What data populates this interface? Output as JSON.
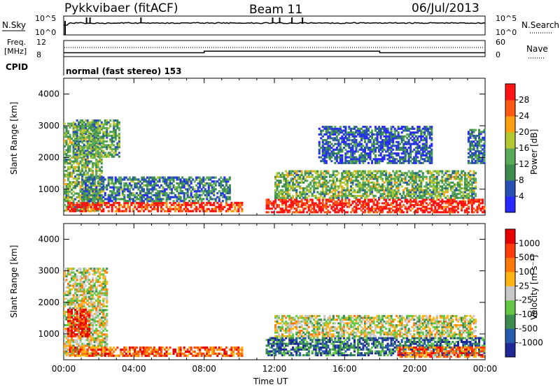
{
  "header": {
    "station": "Pykkvibaer (fitACF)",
    "beam": "Beam 11",
    "date": "06/Jul/2013"
  },
  "status_panels": {
    "nsky_label": "N.Sky",
    "nsky_ticks": [
      "10^5",
      "10^0"
    ],
    "nsearch_label": "N.Search",
    "nsearch_ticks": [
      "10^5",
      "10^0"
    ],
    "freq_label": "Freq.",
    "freq_unit": "[MHz]",
    "freq_ticks": [
      "12",
      "8"
    ],
    "nave_label": "Nave",
    "nave_ticks": [
      "60",
      "0"
    ],
    "cpid_label": "CPID",
    "cpid_text": "normal (fast stereo) 153",
    "freq_steps_hours": [
      0,
      8.0,
      18.0,
      24
    ],
    "freq_step_levels_mhz": [
      8.6,
      9.0,
      8.6
    ]
  },
  "chart_data": [
    {
      "type": "heatmap",
      "panel": "power",
      "ylabel": "Slant Range [km]",
      "yticks": [
        "1000",
        "2000",
        "3000",
        "4000"
      ],
      "ylim": [
        180,
        4500
      ],
      "xlim_hours": [
        0,
        24
      ],
      "colorbar_label": "Power [dB]",
      "colorbar_ticks": [
        "4",
        "8",
        "12",
        "16",
        "20",
        "24",
        "28"
      ],
      "colorbar_colors": [
        "#2828ff",
        "#2850b4",
        "#3c8c50",
        "#5aaa5a",
        "#b4c832",
        "#ffa014",
        "#ff5a14",
        "#ff1414"
      ],
      "regions": [
        {
          "t0": 0.0,
          "t1": 2.2,
          "r0": 300,
          "r1": 3100,
          "level": 0.45
        },
        {
          "t0": 0.5,
          "t1": 3.2,
          "r0": 2000,
          "r1": 3200,
          "level": 0.4
        },
        {
          "t0": 0.2,
          "t1": 10.2,
          "r0": 280,
          "r1": 600,
          "level": 0.9
        },
        {
          "t0": 1.0,
          "t1": 9.5,
          "r0": 600,
          "r1": 1400,
          "level": 0.3
        },
        {
          "t0": 11.5,
          "t1": 24.0,
          "r0": 250,
          "r1": 700,
          "level": 0.95
        },
        {
          "t0": 12.0,
          "t1": 23.5,
          "r0": 700,
          "r1": 1600,
          "level": 0.45
        },
        {
          "t0": 14.5,
          "t1": 21.0,
          "r0": 1800,
          "r1": 3000,
          "level": 0.2
        },
        {
          "t0": 23.0,
          "t1": 24.0,
          "r0": 1800,
          "r1": 2900,
          "level": 0.25
        }
      ]
    },
    {
      "type": "heatmap",
      "panel": "velocity",
      "ylabel": "Slant Range [km]",
      "yticks": [
        "1000",
        "2000",
        "3000",
        "4000"
      ],
      "ylim": [
        180,
        4500
      ],
      "xlim_hours": [
        0,
        24
      ],
      "xticks": [
        "00:00",
        "04:00",
        "08:00",
        "12:00",
        "16:00",
        "20:00",
        "00:00"
      ],
      "xlabel": "Time UT",
      "colorbar_label": "Velocity [m s⁻¹]",
      "colorbar_ticks": [
        "1000",
        "500",
        "100",
        "25",
        "-25",
        "-100",
        "-500",
        "-1000"
      ],
      "colorbar_colors": [
        "#1e2896",
        "#285aaa",
        "#3c8c50",
        "#64c846",
        "#c8c8c8",
        "#ffb414",
        "#ff780a",
        "#ff3c0a",
        "#e60000"
      ],
      "regions": [
        {
          "t0": 0.0,
          "t1": 2.5,
          "r0": 300,
          "r1": 3100,
          "level": 0.5
        },
        {
          "t0": 0.3,
          "t1": 10.2,
          "r0": 280,
          "r1": 600,
          "level": 0.8
        },
        {
          "t0": 0.2,
          "t1": 1.5,
          "r0": 900,
          "r1": 1800,
          "level": 0.9
        },
        {
          "t0": 11.5,
          "t1": 24.0,
          "r0": 300,
          "r1": 900,
          "level": 0.2
        },
        {
          "t0": 12.0,
          "t1": 23.5,
          "r0": 900,
          "r1": 1600,
          "level": 0.5
        },
        {
          "t0": 19.0,
          "t1": 24.0,
          "r0": 250,
          "r1": 600,
          "level": 0.75
        }
      ]
    }
  ]
}
